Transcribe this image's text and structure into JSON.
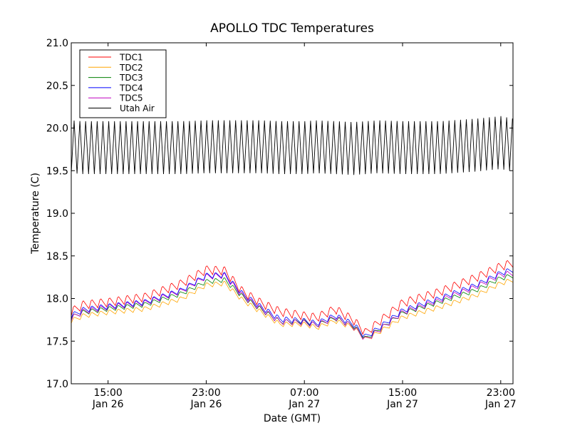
{
  "chart_data": {
    "type": "line",
    "title": "APOLLO TDC Temperatures",
    "xlabel": "Date (GMT)",
    "ylabel": "Temperature (C)",
    "x_unit": "hours since Jan 26 12:00 GMT",
    "xlim": [
      0,
      36
    ],
    "ylim": [
      17.0,
      21.0
    ],
    "grid": false,
    "legend_position": "top-left",
    "x_ticks": [
      {
        "x": 3,
        "line1": "15:00",
        "line2": "Jan 26"
      },
      {
        "x": 11,
        "line1": "23:00",
        "line2": "Jan 26"
      },
      {
        "x": 19,
        "line1": "07:00",
        "line2": "Jan 27"
      },
      {
        "x": 27,
        "line1": "15:00",
        "line2": "Jan 27"
      },
      {
        "x": 35,
        "line1": "23:00",
        "line2": "Jan 27"
      }
    ],
    "y_ticks": [
      "17.0",
      "17.5",
      "18.0",
      "18.5",
      "19.0",
      "19.5",
      "20.0",
      "20.5",
      "21.0"
    ],
    "trend_x": [
      0,
      1,
      3,
      6,
      9,
      11,
      12.5,
      14,
      15.5,
      17,
      19,
      20,
      21.5,
      23,
      24,
      25,
      27,
      30,
      33,
      35,
      36
    ],
    "series": [
      {
        "name": "TDC1",
        "color": "#ff0000",
        "ripple": 0.11,
        "trend": [
          17.85,
          17.93,
          17.96,
          18.02,
          18.18,
          18.34,
          18.33,
          18.08,
          17.95,
          17.85,
          17.8,
          17.78,
          17.88,
          17.75,
          17.6,
          17.72,
          17.95,
          18.08,
          18.25,
          18.38,
          18.42
        ]
      },
      {
        "name": "TDC2",
        "color": "#ffa500",
        "ripple": 0.06,
        "trend": [
          17.74,
          17.8,
          17.84,
          17.88,
          18.0,
          18.16,
          18.18,
          17.98,
          17.84,
          17.7,
          17.7,
          17.66,
          17.74,
          17.66,
          17.52,
          17.6,
          17.78,
          17.9,
          18.04,
          18.18,
          18.22
        ]
      },
      {
        "name": "TDC3",
        "color": "#008000",
        "ripple": 0.06,
        "trend": [
          17.78,
          17.84,
          17.88,
          17.93,
          18.06,
          18.2,
          18.22,
          18.02,
          17.87,
          17.73,
          17.73,
          17.69,
          17.77,
          17.68,
          17.53,
          17.63,
          17.83,
          17.96,
          18.1,
          18.24,
          18.27
        ]
      },
      {
        "name": "TDC4",
        "color": "#0000ff",
        "ripple": 0.07,
        "trend": [
          17.8,
          17.87,
          17.91,
          17.96,
          18.1,
          18.27,
          18.28,
          18.05,
          17.9,
          17.76,
          17.74,
          17.71,
          17.8,
          17.7,
          17.55,
          17.65,
          17.86,
          18.0,
          18.16,
          18.3,
          18.34
        ]
      },
      {
        "name": "TDC5",
        "color": "#bf00bf",
        "ripple": 0.07,
        "trend": [
          17.77,
          17.85,
          17.9,
          17.95,
          18.09,
          18.26,
          18.27,
          18.03,
          17.88,
          17.73,
          17.72,
          17.69,
          17.78,
          17.67,
          17.52,
          17.62,
          17.84,
          17.98,
          18.14,
          18.28,
          18.3
        ]
      },
      {
        "name": "Utah Air",
        "color": "#000000",
        "ripple": 0.31,
        "trend": [
          19.78,
          19.77,
          19.77,
          19.77,
          19.77,
          19.78,
          19.78,
          19.78,
          19.78,
          19.77,
          19.77,
          19.78,
          19.77,
          19.76,
          19.77,
          19.78,
          19.77,
          19.77,
          19.8,
          19.83,
          19.8
        ]
      }
    ],
    "air_period_hours": 0.47,
    "tdc_period_hours": 0.72
  }
}
